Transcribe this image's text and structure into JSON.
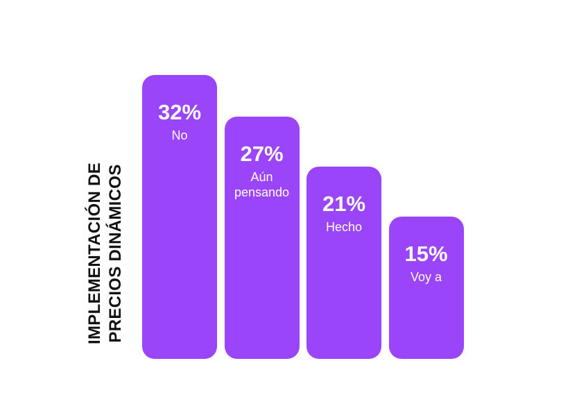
{
  "chart_data": {
    "type": "bar",
    "ylabel": "IMPLEMENTACIÓN DE PRECIOS DINÁMICOS",
    "categories": [
      "No",
      "Aún pensando",
      "Hecho",
      "Voy a"
    ],
    "values": [
      32,
      27,
      21,
      15
    ],
    "value_labels": [
      "32%",
      "27%",
      "21%",
      "15%"
    ],
    "color": "#9b45fb"
  }
}
